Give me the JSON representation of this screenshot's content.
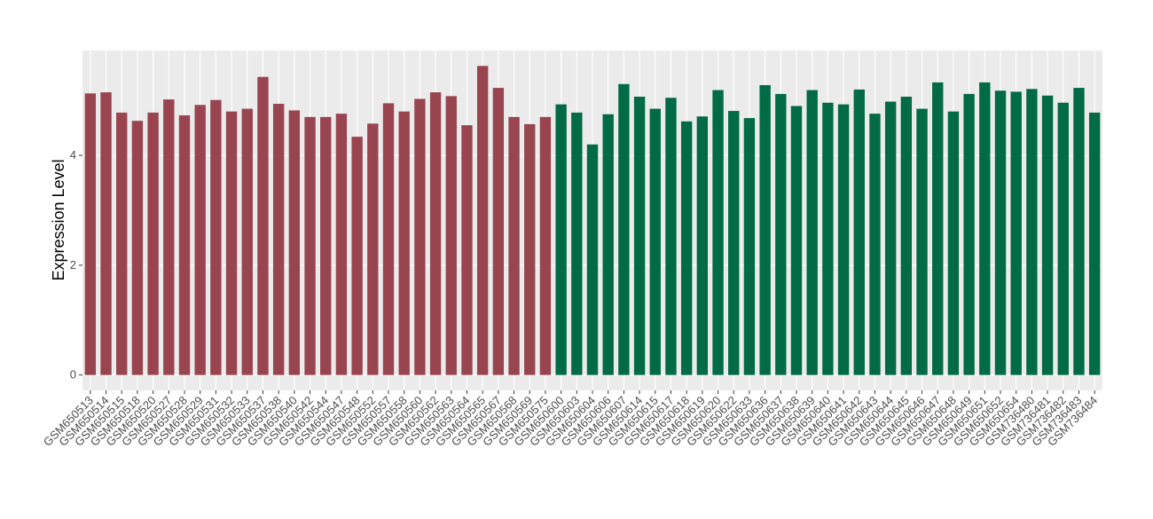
{
  "chart_data": {
    "type": "bar",
    "y_label": "Expression Level",
    "categories": [
      "GSM650513",
      "GSM650514",
      "GSM650515",
      "GSM650518",
      "GSM650520",
      "GSM650527",
      "GSM650528",
      "GSM650529",
      "GSM650531",
      "GSM650532",
      "GSM650533",
      "GSM650537",
      "GSM650538",
      "GSM650540",
      "GSM650542",
      "GSM650544",
      "GSM650547",
      "GSM650548",
      "GSM650552",
      "GSM650557",
      "GSM650558",
      "GSM650560",
      "GSM650562",
      "GSM650563",
      "GSM650564",
      "GSM650565",
      "GSM650567",
      "GSM650568",
      "GSM650569",
      "GSM650575",
      "GSM650600",
      "GSM650603",
      "GSM650604",
      "GSM650606",
      "GSM650607",
      "GSM650614",
      "GSM650615",
      "GSM650617",
      "GSM650618",
      "GSM650619",
      "GSM650620",
      "GSM650622",
      "GSM650633",
      "GSM650636",
      "GSM650637",
      "GSM650638",
      "GSM650639",
      "GSM650640",
      "GSM650641",
      "GSM650642",
      "GSM650643",
      "GSM650644",
      "GSM650645",
      "GSM650646",
      "GSM650647",
      "GSM650648",
      "GSM650649",
      "GSM650651",
      "GSM650652",
      "GSM650654",
      "GSM736480",
      "GSM736481",
      "GSM736482",
      "GSM736483",
      "GSM736484"
    ],
    "values": [
      5.13,
      5.15,
      4.78,
      4.63,
      4.78,
      5.02,
      4.73,
      4.92,
      5.01,
      4.8,
      4.85,
      5.43,
      4.94,
      4.82,
      4.7,
      4.7,
      4.76,
      4.34,
      4.58,
      4.95,
      4.8,
      5.03,
      5.15,
      5.08,
      4.55,
      5.63,
      5.23,
      4.7,
      4.57,
      4.7,
      4.93,
      4.78,
      4.2,
      4.75,
      5.3,
      5.07,
      4.85,
      5.05,
      4.62,
      4.71,
      5.19,
      4.81,
      4.68,
      5.28,
      5.12,
      4.9,
      5.19,
      4.96,
      4.93,
      5.2,
      4.76,
      4.98,
      5.07,
      4.85,
      5.33,
      4.8,
      5.12,
      5.33,
      5.18,
      5.16,
      5.21,
      5.09,
      4.96,
      5.23,
      4.78
    ],
    "colors": [
      "#994550",
      "#994550",
      "#994550",
      "#994550",
      "#994550",
      "#994550",
      "#994550",
      "#994550",
      "#994550",
      "#994550",
      "#994550",
      "#994550",
      "#994550",
      "#994550",
      "#994550",
      "#994550",
      "#994550",
      "#994550",
      "#994550",
      "#994550",
      "#994550",
      "#994550",
      "#994550",
      "#994550",
      "#994550",
      "#994550",
      "#994550",
      "#994550",
      "#994550",
      "#994550",
      "#006b45",
      "#006b45",
      "#006b45",
      "#006b45",
      "#006b45",
      "#006b45",
      "#006b45",
      "#006b45",
      "#006b45",
      "#006b45",
      "#006b45",
      "#006b45",
      "#006b45",
      "#006b45",
      "#006b45",
      "#006b45",
      "#006b45",
      "#006b45",
      "#006b45",
      "#006b45",
      "#006b45",
      "#006b45",
      "#006b45",
      "#006b45",
      "#006b45",
      "#006b45",
      "#006b45",
      "#006b45",
      "#006b45",
      "#006b45",
      "#006b45",
      "#006b45",
      "#006b45",
      "#006b45",
      "#006b45"
    ],
    "ylim": [
      -0.28,
      5.91
    ],
    "yticks": [
      0,
      2,
      4
    ],
    "grid": true
  }
}
